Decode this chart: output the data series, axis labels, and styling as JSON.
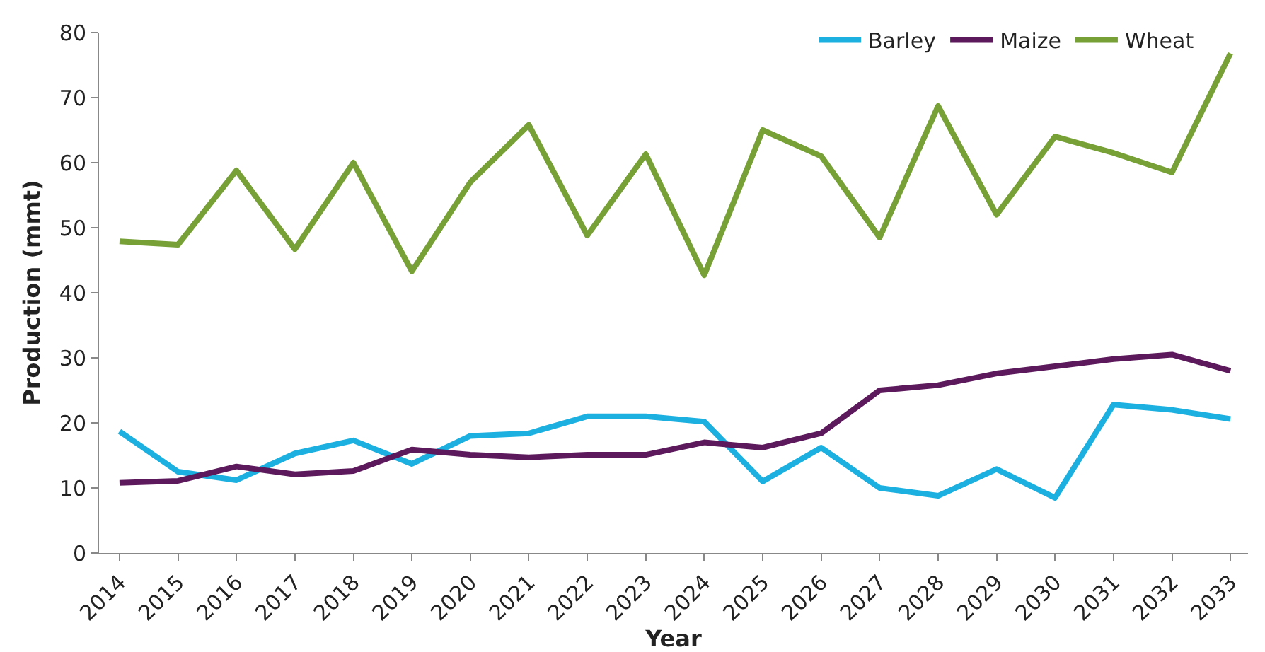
{
  "chart_data": {
    "type": "line",
    "xlabel": "Year",
    "ylabel": "Production (mmt)",
    "categories": [
      "2014",
      "2015",
      "2016",
      "2017",
      "2018",
      "2019",
      "2020",
      "2021",
      "2022",
      "2023",
      "2024",
      "2025",
      "2026",
      "2027",
      "2028",
      "2029",
      "2030",
      "2031",
      "2032",
      "2033"
    ],
    "series": [
      {
        "name": "Barley",
        "color": "#1cb0e0",
        "values": [
          18.7,
          12.5,
          11.2,
          15.3,
          17.3,
          13.7,
          18,
          18.4,
          21,
          21,
          20.2,
          11,
          16.2,
          10,
          8.8,
          12.9,
          8.5,
          22.8,
          22,
          20.6
        ]
      },
      {
        "name": "Maize",
        "color": "#5c1a5c",
        "values": [
          10.8,
          11.1,
          13.3,
          12.1,
          12.6,
          15.9,
          15.1,
          14.7,
          15.1,
          15.1,
          17,
          16.2,
          18.4,
          25,
          25.8,
          27.6,
          28.7,
          29.8,
          30.5,
          28
        ]
      },
      {
        "name": "Wheat",
        "color": "#77a136",
        "values": [
          47.9,
          47.4,
          58.8,
          46.7,
          60,
          43.3,
          57,
          65.8,
          48.8,
          61.3,
          42.7,
          65,
          61,
          48.5,
          68.7,
          52,
          64,
          61.5,
          58.5,
          76.8
        ]
      }
    ],
    "ylim": [
      0,
      80
    ],
    "yticks": [
      0,
      10,
      20,
      30,
      40,
      50,
      60,
      70,
      80
    ],
    "grid": false,
    "legend": "top right",
    "marker": "none",
    "line_style": "solid"
  }
}
